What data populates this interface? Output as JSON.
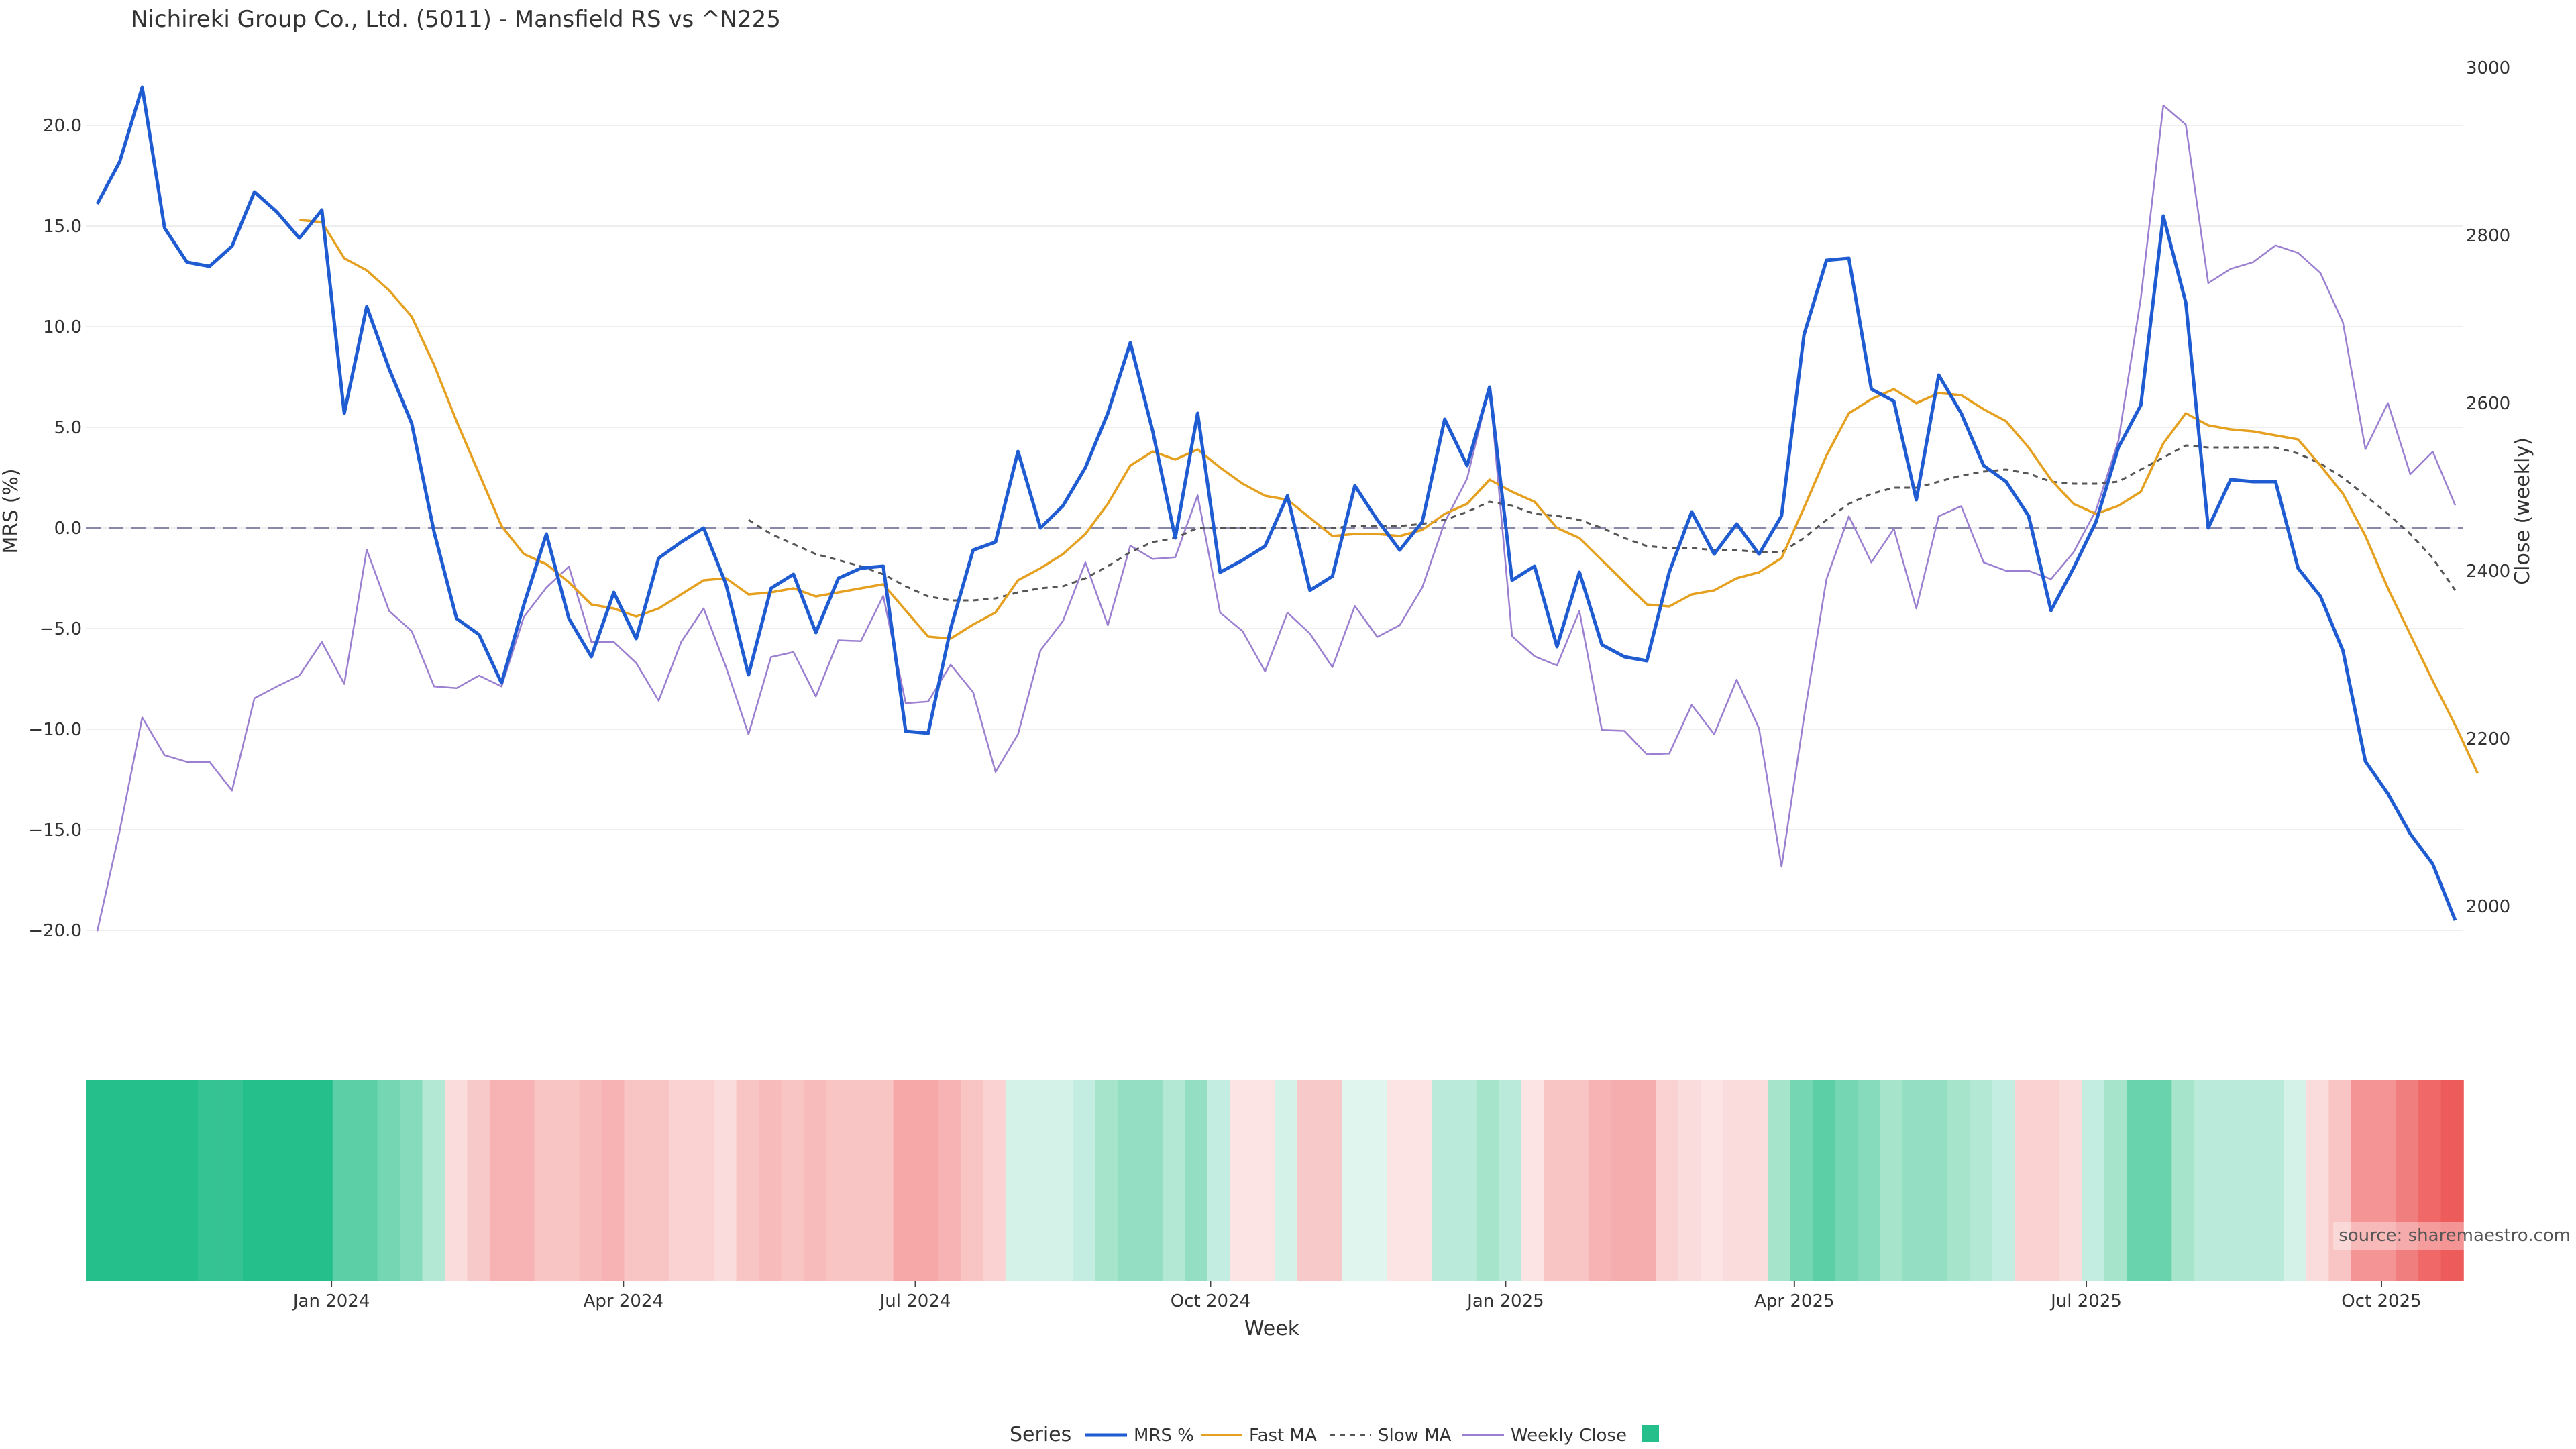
{
  "chart_data": {
    "type": "line",
    "title": "Nichireki Group Co., Ltd. (5011) - Mansfield RS vs ^N225",
    "xlabel": "Week",
    "ylabel": "MRS (%)",
    "y2label": "Close (weekly)",
    "ylim": [
      -21.5,
      23.5
    ],
    "y2lim": [
      1935,
      3015
    ],
    "yticks": [
      20.0,
      15.0,
      10.0,
      5.0,
      0.0,
      -5.0,
      -10.0,
      -15.0,
      -20.0
    ],
    "ytick_labels": [
      "20.0",
      "15.0",
      "10.0",
      "5.0",
      "0.0",
      "−5.0",
      "−10.0",
      "−15.0",
      "−20.0"
    ],
    "y2ticks": [
      3000,
      2800,
      2600,
      2400,
      2200,
      2000
    ],
    "y2tick_labels": [
      "3000",
      "2800",
      "2600",
      "2400",
      "2200",
      "2000"
    ],
    "x_start": "2023-10-20",
    "x_step_days": 7,
    "xticks": [
      {
        "date": "2024-01-01",
        "label": "Jan 2024"
      },
      {
        "date": "2024-04-01",
        "label": "Apr 2024"
      },
      {
        "date": "2024-07-01",
        "label": "Jul 2024"
      },
      {
        "date": "2024-10-01",
        "label": "Oct 2024"
      },
      {
        "date": "2025-01-01",
        "label": "Jan 2025"
      },
      {
        "date": "2025-04-01",
        "label": "Apr 2025"
      },
      {
        "date": "2025-07-01",
        "label": "Jul 2025"
      },
      {
        "date": "2025-10-01",
        "label": "Oct 2025"
      }
    ],
    "grid": true,
    "zero_line": "dashed",
    "series": [
      {
        "name": "MRS %",
        "color": "#1f5bd1",
        "values": [
          16.1,
          18.2,
          21.9,
          14.9,
          13.2,
          13.0,
          14.0,
          16.7,
          15.7,
          14.4,
          15.8,
          5.7,
          11.0,
          7.9,
          5.2,
          -0.2,
          -4.5,
          -5.3,
          -7.7,
          -3.8,
          -0.3,
          -4.5,
          -6.4,
          -3.2,
          -5.5,
          -1.5,
          -0.7,
          0.0,
          -2.8,
          -7.3,
          -3.0,
          -2.3,
          -5.2,
          -2.5,
          -2.0,
          -1.9,
          -10.1,
          -10.2,
          -5.0,
          -1.1,
          -0.7,
          3.8,
          0.0,
          1.1,
          3.0,
          5.7,
          9.2,
          4.8,
          -0.5,
          5.7,
          -2.2,
          -1.6,
          -0.9,
          1.6,
          -3.1,
          -2.4,
          2.1,
          0.4,
          -1.1,
          0.3,
          5.4,
          3.1,
          7.0,
          -2.6,
          -1.9,
          -5.9,
          -2.2,
          -5.8,
          -6.4,
          -6.6,
          -2.2,
          0.8,
          -1.3,
          0.2,
          -1.3,
          0.6,
          9.6,
          13.3,
          13.4,
          6.9,
          6.3,
          1.4,
          7.6,
          5.7,
          3.1,
          2.3,
          0.6,
          -4.1,
          -2.0,
          0.3,
          4.0,
          6.1,
          15.5,
          11.2,
          0.0,
          2.4,
          2.3,
          2.3,
          -2.0,
          -3.4,
          -6.1,
          -11.6,
          -13.2,
          -15.2,
          -16.7,
          -19.5
        ]
      },
      {
        "name": "Fast MA",
        "color": "#e6a020",
        "values": [
          null,
          null,
          null,
          null,
          null,
          null,
          null,
          null,
          null,
          15.3,
          15.2,
          13.4,
          12.8,
          11.8,
          10.5,
          8.1,
          5.3,
          2.7,
          0.1,
          -1.3,
          -1.8,
          -2.7,
          -3.8,
          -4.0,
          -4.4,
          -4.0,
          -3.3,
          -2.6,
          -2.5,
          -3.3,
          -3.2,
          -3.0,
          -3.4,
          -3.2,
          -3.0,
          -2.8,
          -4.1,
          -5.4,
          -5.5,
          -4.8,
          -4.2,
          -2.6,
          -2.0,
          -1.3,
          -0.3,
          1.2,
          3.1,
          3.8,
          3.4,
          3.9,
          3.0,
          2.2,
          1.6,
          1.4,
          0.5,
          -0.4,
          -0.3,
          -0.3,
          -0.4,
          -0.1,
          0.7,
          1.2,
          2.4,
          1.8,
          1.3,
          0.0,
          -0.5,
          -1.6,
          -2.7,
          -3.8,
          -3.9,
          -3.3,
          -3.1,
          -2.5,
          -2.2,
          -1.5,
          1.0,
          3.6,
          5.7,
          6.4,
          6.9,
          6.2,
          6.7,
          6.6,
          5.9,
          5.3,
          4.0,
          2.4,
          1.2,
          0.7,
          1.1,
          1.8,
          4.2,
          5.7,
          5.1,
          4.9,
          4.8,
          4.6,
          4.4,
          3.1,
          1.7,
          -0.4,
          -3.0,
          -5.3,
          -7.6,
          -9.8,
          -12.2
        ]
      },
      {
        "name": "Slow MA",
        "color": "#555555",
        "dash": true,
        "values": [
          null,
          null,
          null,
          null,
          null,
          null,
          null,
          null,
          null,
          null,
          null,
          null,
          null,
          null,
          null,
          null,
          null,
          null,
          null,
          null,
          null,
          null,
          null,
          null,
          null,
          null,
          null,
          null,
          null,
          0.4,
          -0.3,
          -0.8,
          -1.3,
          -1.6,
          -1.9,
          -2.3,
          -2.9,
          -3.4,
          -3.6,
          -3.6,
          -3.5,
          -3.2,
          -3.0,
          -2.9,
          -2.5,
          -1.9,
          -1.2,
          -0.7,
          -0.5,
          0.0,
          0.0,
          0.0,
          0.0,
          0.0,
          0.0,
          0.0,
          0.1,
          0.1,
          0.1,
          0.2,
          0.4,
          0.8,
          1.3,
          1.1,
          0.7,
          0.6,
          0.4,
          0.0,
          -0.5,
          -0.9,
          -1.0,
          -1.0,
          -1.1,
          -1.1,
          -1.2,
          -1.2,
          -0.5,
          0.4,
          1.2,
          1.7,
          2.0,
          2.0,
          2.3,
          2.6,
          2.8,
          2.9,
          2.7,
          2.3,
          2.2,
          2.2,
          2.3,
          2.9,
          3.5,
          4.1,
          4.0,
          4.0,
          4.0,
          4.0,
          3.7,
          3.2,
          2.5,
          1.6,
          0.7,
          -0.3,
          -1.5,
          -3.1
        ]
      },
      {
        "name": "Weekly Close",
        "color": "#9b7fd0",
        "axis": "right",
        "values": [
          1970,
          2090,
          2225,
          2180,
          2172,
          2172,
          2138,
          2248,
          2262,
          2275,
          2315,
          2265,
          2425,
          2352,
          2328,
          2262,
          2260,
          2275,
          2262,
          2345,
          2380,
          2405,
          2315,
          2315,
          2290,
          2245,
          2315,
          2355,
          2285,
          2205,
          2297,
          2303,
          2250,
          2317,
          2316,
          2370,
          2242,
          2244,
          2288,
          2255,
          2160,
          2205,
          2305,
          2340,
          2410,
          2335,
          2430,
          2414,
          2416,
          2490,
          2350,
          2328,
          2280,
          2350,
          2325,
          2285,
          2358,
          2321,
          2335,
          2380,
          2458,
          2510,
          2620,
          2322,
          2298,
          2287,
          2352,
          2210,
          2209,
          2181,
          2182,
          2240,
          2205,
          2270,
          2212,
          2047,
          2225,
          2390,
          2465,
          2410,
          2450,
          2355,
          2465,
          2477,
          2410,
          2400,
          2400,
          2390,
          2422,
          2472,
          2555,
          2725,
          2955,
          2932,
          2743,
          2760,
          2768,
          2788,
          2779,
          2755,
          2696,
          2545,
          2600,
          2515,
          2542,
          2478
        ]
      }
    ],
    "heatmap_colors": [
      "#25bf8c",
      "#25bf8c",
      "#25bf8c",
      "#25bf8c",
      "#25bf8c",
      "#36c394",
      "#36c394",
      "#25bf8c",
      "#25bf8c",
      "#25bf8c",
      "#25bf8c",
      "#5ccfa6",
      "#5ccfa6",
      "#74d6b3",
      "#87dbbd",
      "#b2e8d4",
      "#fadcdc",
      "#f8c9c9",
      "#f7b3b3",
      "#f7b3b3",
      "#f8c4c4",
      "#f8c4c4",
      "#f8bbbb",
      "#f7b3b3",
      "#f8c4c4",
      "#f8c4c4",
      "#fad2d2",
      "#fad2d2",
      "#fadcdc",
      "#f8c4c4",
      "#f8bbbb",
      "#f8c4c4",
      "#f8bbbb",
      "#f8c4c4",
      "#f8c4c4",
      "#f8c4c4",
      "#f6a7a7",
      "#f6a7a7",
      "#f7b3b3",
      "#f8c4c4",
      "#fad2d2",
      "#d4f2e7",
      "#d4f2e7",
      "#d4f2e7",
      "#c3ede0",
      "#a6e4cc",
      "#94dfc4",
      "#94dfc4",
      "#b2e8d4",
      "#94dfc4",
      "#c3ede0",
      "#fde4e4",
      "#fde4e4",
      "#d4f2e7",
      "#f8c9c9",
      "#f8c9c9",
      "#dff5ed",
      "#dff5ed",
      "#fde4e4",
      "#fde4e4",
      "#b9eada",
      "#b9eada",
      "#a6e4cc",
      "#b9eada",
      "#fde4e4",
      "#f8c4c4",
      "#f8c4c4",
      "#f7b3b3",
      "#f6adad",
      "#f6adad",
      "#fad2d2",
      "#fadcdc",
      "#fde4e4",
      "#fadcdc",
      "#fadcdc",
      "#a6e4cc",
      "#74d6b3",
      "#5ccfa6",
      "#74d6b3",
      "#87dbbd",
      "#a6e4cc",
      "#94dfc4",
      "#94dfc4",
      "#a6e4cc",
      "#b2e8d4",
      "#c3ede0",
      "#fad2d2",
      "#fad2d2",
      "#fadcdc",
      "#c3ede0",
      "#a6e4cc",
      "#68d3ad",
      "#68d3ad",
      "#a6e4cc",
      "#b9eada",
      "#b9eada",
      "#b9eada",
      "#b9eada",
      "#d4f2e7",
      "#fadcdc",
      "#f8c4c4",
      "#f49494",
      "#f49494",
      "#f07e7e",
      "#f06868",
      "#ee5b5b"
    ],
    "legend": {
      "title": "Series",
      "placement": "bottom-center",
      "items": [
        "MRS %",
        "Fast MA",
        "Slow MA",
        "Weekly Close",
        ""
      ],
      "swatch_color": "#25bf8c"
    },
    "source_note": "source: sharemaestro.com"
  }
}
